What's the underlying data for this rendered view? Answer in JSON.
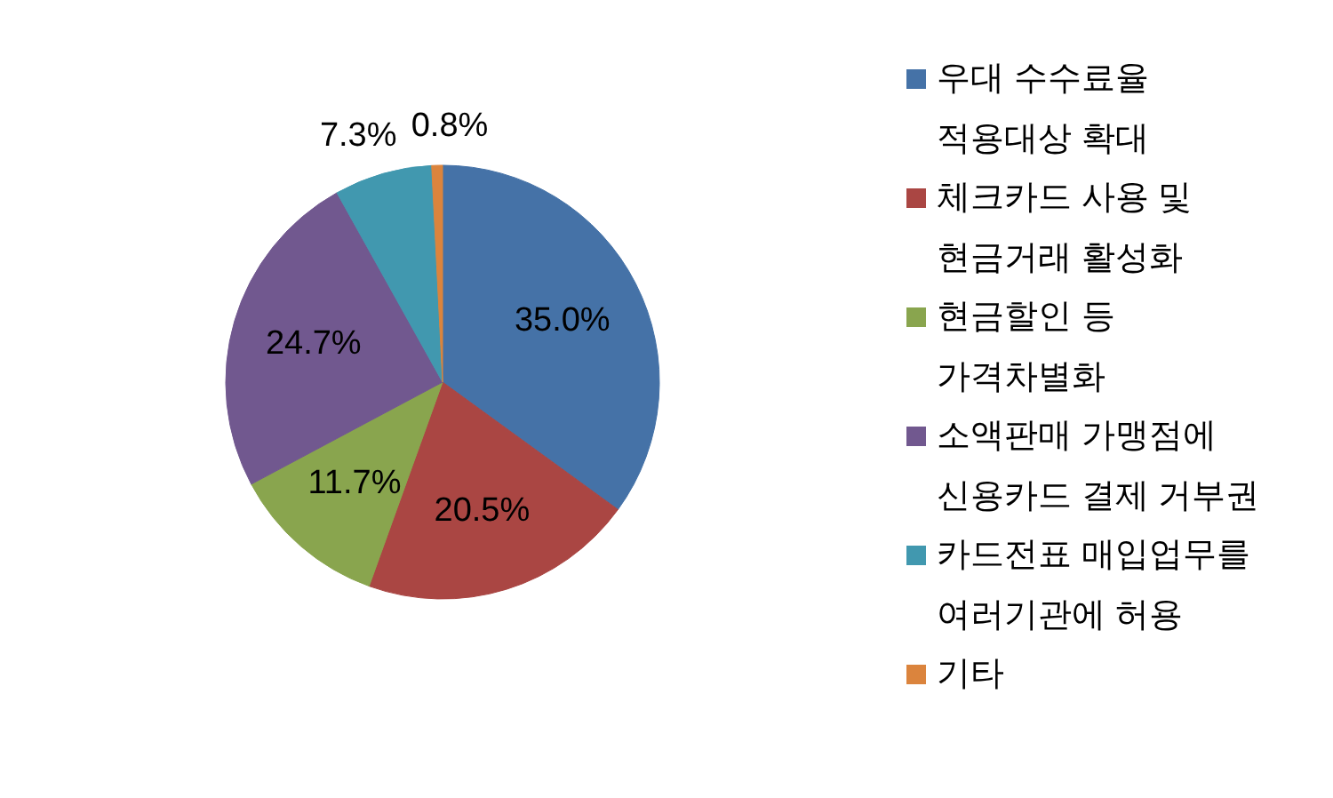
{
  "chart_data": {
    "type": "pie",
    "categories": [
      "우대 수수료율\n적용대상 확대",
      "체크카드 사용 및\n현금거래 활성화",
      "현금할인 등\n가격차별화",
      "소액판매 가맹점에\n신용카드 결제 거부권",
      "카드전표 매입업무를\n여러기관에 허용",
      "기타"
    ],
    "values": [
      35.0,
      20.5,
      11.7,
      24.7,
      7.3,
      0.8
    ],
    "colors": [
      "#4572a7",
      "#aa4643",
      "#89a54e",
      "#71588f",
      "#4198af",
      "#db843d"
    ],
    "value_labels": [
      "35.0%",
      "20.5%",
      "11.7%",
      "24.7%",
      "7.3%",
      "0.8%"
    ],
    "legend": "right"
  }
}
